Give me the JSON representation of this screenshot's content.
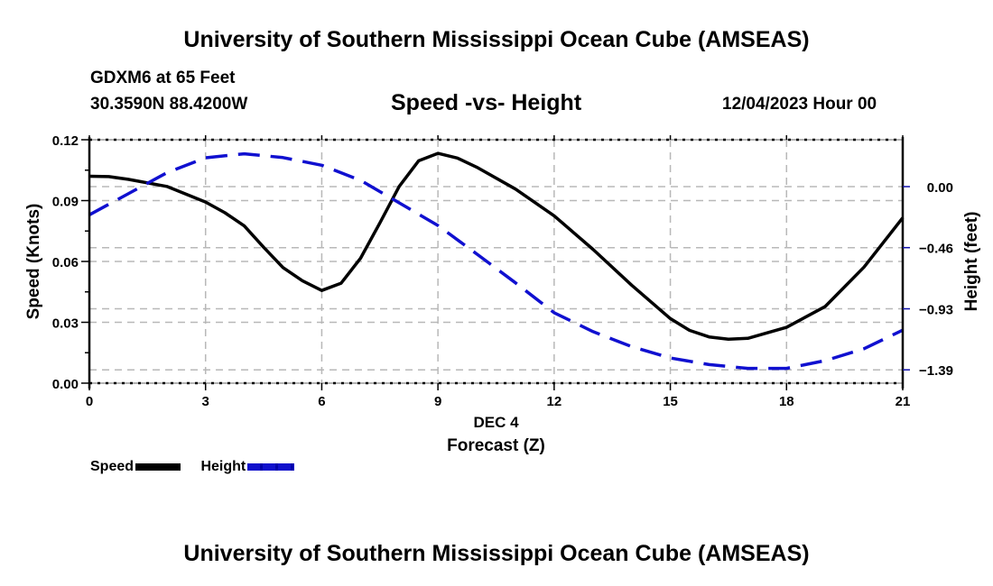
{
  "header": {
    "title": "University of Southern Mississippi Ocean Cube (AMSEAS)",
    "station": "GDXM6 at 65 Feet",
    "coordinates": "30.3590N  88.4200W",
    "chart_title": "Speed -vs- Height",
    "datetime": "12/04/2023 Hour 00"
  },
  "footer": {
    "title": "University of Southern Mississippi Ocean Cube (AMSEAS)"
  },
  "legend": {
    "speed_label": "Speed",
    "height_label": "Height"
  },
  "colors": {
    "speed": "#000000",
    "height": "#1010d0",
    "grid": "#b8b8b8"
  },
  "chart_data": {
    "type": "line",
    "title": "Speed -vs- Height",
    "xlabel": "Forecast (Z)",
    "xlabel_sub": "DEC 4",
    "ylabel": "Speed (Knots)",
    "y2label": "Height (feet)",
    "xlim": [
      0,
      21
    ],
    "ylim": [
      0,
      0.12
    ],
    "y2lim": [
      -1.5,
      0.33
    ],
    "x_ticks": [
      0,
      3,
      6,
      9,
      12,
      15,
      18,
      21
    ],
    "x_tick_labels": [
      "0",
      "3",
      "6",
      "9",
      "12",
      "15",
      "18",
      "21"
    ],
    "y_ticks": [
      0,
      0.03,
      0.06,
      0.09,
      0.12
    ],
    "y_tick_labels": [
      "0.00",
      "0.03",
      "0.06",
      "0.09",
      "0.12"
    ],
    "y2_ticks": [
      0.0,
      -0.463,
      -0.927,
      -1.39
    ],
    "y2_tick_labels": [
      "0.00",
      "−0.46",
      "−0.93",
      "−1.39"
    ],
    "grid": true,
    "legend_position": "bottom-left",
    "series": [
      {
        "name": "Speed",
        "axis": "left",
        "style": "solid",
        "x": [
          0,
          0.5,
          1,
          2,
          3,
          3.5,
          4,
          4.5,
          5,
          5.5,
          6,
          6.5,
          7,
          7.5,
          8,
          8.5,
          9,
          9.5,
          10,
          11,
          12,
          13,
          14,
          15,
          15.5,
          16,
          16.5,
          17,
          18,
          19,
          20,
          21
        ],
        "values": [
          0.102,
          0.1018,
          0.1005,
          0.097,
          0.0893,
          0.084,
          0.0775,
          0.067,
          0.057,
          0.0505,
          0.0457,
          0.0493,
          0.0615,
          0.079,
          0.097,
          0.1096,
          0.1133,
          0.111,
          0.1065,
          0.0957,
          0.0825,
          0.066,
          0.0483,
          0.0318,
          0.026,
          0.0228,
          0.0217,
          0.0221,
          0.0275,
          0.0378,
          0.0572,
          0.0815
        ]
      },
      {
        "name": "Height",
        "axis": "right",
        "style": "dashed",
        "x": [
          0,
          1,
          2,
          3,
          4,
          5,
          6,
          7,
          8,
          9,
          10,
          11,
          12,
          13,
          14,
          15,
          16,
          17,
          18,
          19,
          20,
          21
        ],
        "values": [
          -0.214,
          -0.055,
          0.105,
          0.219,
          0.249,
          0.22,
          0.162,
          0.048,
          -0.123,
          -0.295,
          -0.51,
          -0.73,
          -0.957,
          -1.1,
          -1.214,
          -1.3,
          -1.35,
          -1.379,
          -1.379,
          -1.32,
          -1.23,
          -1.089
        ]
      }
    ]
  }
}
